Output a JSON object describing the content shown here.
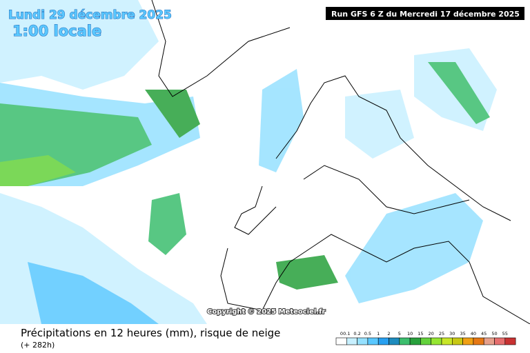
{
  "header": {
    "date": "Lundi 29 décembre 2025",
    "time": "1:00 locale",
    "run": "Run GFS 6 Z du Mercredi 17 décembre 2025"
  },
  "copyright": "Copyright © 2025 Meteociel.fr",
  "caption": {
    "title": "Précipitations en 12 heures (mm), risque de neige",
    "lead": "(+ 282h)"
  },
  "legend": {
    "labels": [
      "0",
      "0.1",
      "0.2",
      "0.5",
      "1",
      "2",
      "5",
      "10",
      "15",
      "20",
      "25",
      "30",
      "35",
      "40",
      "45",
      "50",
      "55"
    ],
    "colors": [
      "#ffffff",
      "#c8f0ff",
      "#96e1ff",
      "#5ac8ff",
      "#28a0f0",
      "#1e8cbe",
      "#3cbe6e",
      "#28a03c",
      "#64d23c",
      "#96e632",
      "#c8e628",
      "#c8c814",
      "#f0a014",
      "#e67814",
      "#e6a08c",
      "#e66e6e",
      "#c83232"
    ]
  }
}
